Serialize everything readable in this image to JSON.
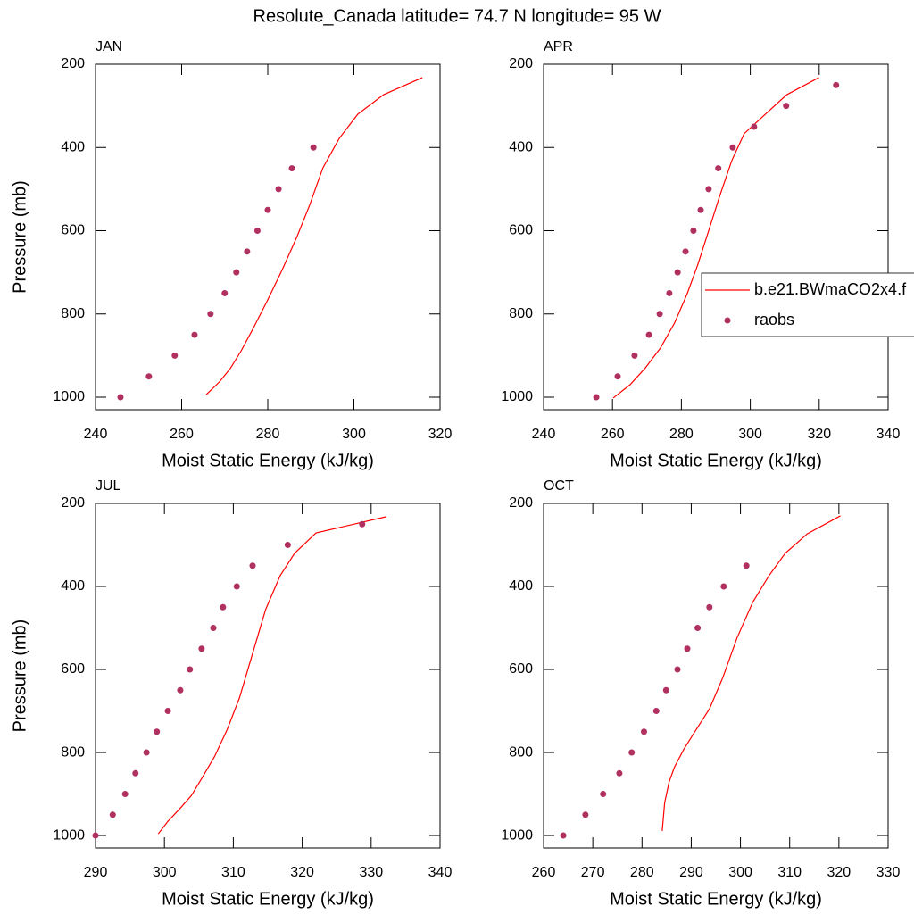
{
  "title": "Resolute_Canada  latitude= 74.7 N longitude= 95 W",
  "chart_data": [
    {
      "type": "line",
      "title": "JAN",
      "xlabel": "Moist Static Energy (kJ/kg)",
      "ylabel": "Pressure (mb)",
      "xlim": [
        240,
        320
      ],
      "ylim": [
        1030,
        200
      ],
      "xticks": [
        240,
        260,
        280,
        300,
        320
      ],
      "yticks": [
        200,
        400,
        600,
        800,
        1000
      ],
      "series": [
        {
          "color": "#ff0000",
          "style": "line",
          "x": [
            265.7,
            268.8,
            271.3,
            273.8,
            276.7,
            280,
            283.3,
            286.8,
            289.7,
            292.8,
            296.6,
            300.9,
            306.9,
            315.9
          ],
          "values": [
            994,
            963,
            931,
            889,
            833,
            766,
            695,
            614,
            539,
            449,
            378,
            320,
            273,
            232
          ]
        },
        {
          "color": "#b03060",
          "style": "markers",
          "x": [
            245.8,
            252.4,
            258.4,
            263,
            266.7,
            270,
            272.7,
            275.2,
            277.6,
            280,
            282.5,
            285.6,
            290.6
          ],
          "values": [
            1000,
            950,
            900,
            850,
            800,
            750,
            700,
            650,
            600,
            550,
            500,
            450,
            400
          ]
        }
      ]
    },
    {
      "type": "line",
      "title": "APR",
      "xlabel": "Moist Static Energy (kJ/kg)",
      "xlim": [
        240,
        340
      ],
      "ylim": [
        1030,
        200
      ],
      "xticks": [
        240,
        260,
        280,
        300,
        320,
        340
      ],
      "yticks": [
        200,
        400,
        600,
        800,
        1000
      ],
      "legend": "right",
      "series": [
        {
          "name": "b.e21.BWmaCO2x4.f",
          "color": "#ff0000",
          "style": "line",
          "x": [
            260.2,
            265.1,
            269.4,
            273.9,
            278,
            281.6,
            284.7,
            287.8,
            290.9,
            294.6,
            298.2,
            304.9,
            310.6,
            319.9
          ],
          "values": [
            1002,
            970,
            931,
            882,
            822,
            753,
            683,
            603,
            522,
            432,
            367,
            316,
            273,
            232
          ]
        },
        {
          "name": "raobs",
          "color": "#b03060",
          "style": "markers",
          "x": [
            255.3,
            261.5,
            266.4,
            270.6,
            273.7,
            276.5,
            278.9,
            281.2,
            283.5,
            285.6,
            287.9,
            290.7,
            294.9,
            301.1,
            310.4,
            324.9
          ],
          "values": [
            1000,
            950,
            900,
            850,
            800,
            750,
            700,
            650,
            600,
            550,
            500,
            450,
            400,
            350,
            300,
            250
          ]
        }
      ]
    },
    {
      "type": "line",
      "title": "JUL",
      "xlabel": "Moist Static Energy (kJ/kg)",
      "ylabel": "Pressure (mb)",
      "xlim": [
        290,
        340
      ],
      "ylim": [
        1030,
        200
      ],
      "xticks": [
        290,
        300,
        310,
        320,
        330,
        340
      ],
      "yticks": [
        200,
        400,
        600,
        800,
        1000
      ],
      "series": [
        {
          "color": "#ff0000",
          "style": "line",
          "x": [
            299.1,
            300.5,
            302.2,
            303.9,
            305.4,
            307.3,
            309.1,
            310.9,
            312.7,
            314.7,
            316.8,
            318.9,
            322,
            332.2
          ],
          "values": [
            996,
            966,
            936,
            904,
            863,
            809,
            745,
            668,
            567,
            455,
            374,
            320,
            271,
            232
          ]
        },
        {
          "color": "#b03060",
          "style": "markers",
          "x": [
            290,
            292.5,
            294.3,
            295.8,
            297.4,
            298.9,
            300.5,
            302.3,
            303.7,
            305.4,
            307.1,
            308.5,
            310.5,
            312.8,
            317.9,
            328.7
          ],
          "values": [
            1000,
            950,
            900,
            850,
            800,
            750,
            700,
            650,
            600,
            550,
            500,
            450,
            400,
            350,
            300,
            250
          ]
        }
      ]
    },
    {
      "type": "line",
      "title": "OCT",
      "xlabel": "Moist Static Energy (kJ/kg)",
      "xlim": [
        260,
        330
      ],
      "ylim": [
        1030,
        200
      ],
      "xticks": [
        260,
        270,
        280,
        290,
        300,
        310,
        320,
        330
      ],
      "yticks": [
        200,
        400,
        600,
        800,
        1000
      ],
      "series": [
        {
          "color": "#ff0000",
          "style": "line",
          "x": [
            284.1,
            284.6,
            285.5,
            286.6,
            288.5,
            291,
            293.7,
            296.4,
            299.3,
            302.5,
            305.8,
            309.1,
            313.6,
            320.3
          ],
          "values": [
            989,
            921,
            871,
            835,
            792,
            745,
            695,
            620,
            524,
            438,
            374,
            320,
            273,
            230
          ]
        },
        {
          "color": "#b03060",
          "style": "markers",
          "x": [
            264,
            268.5,
            272.1,
            275.4,
            277.9,
            280.4,
            282.9,
            284.9,
            287.2,
            289.2,
            291.3,
            293.7,
            296.6,
            301.2
          ],
          "values": [
            1000,
            950,
            900,
            850,
            800,
            750,
            700,
            650,
            600,
            550,
            500,
            450,
            400,
            350
          ]
        }
      ]
    }
  ]
}
